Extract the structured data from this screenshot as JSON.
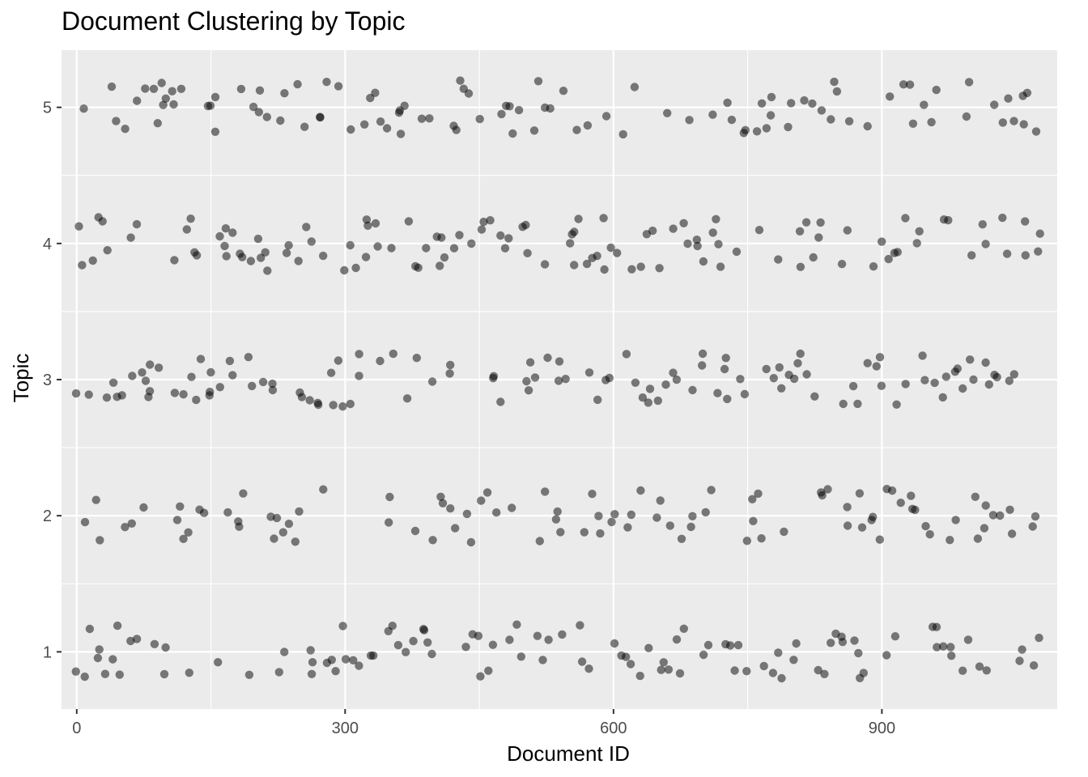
{
  "chart_data": {
    "type": "scatter",
    "title": "Document Clustering by Topic",
    "xlabel": "Document ID",
    "ylabel": "Topic",
    "xlim": [
      -17,
      1096
    ],
    "ylim": [
      0.58,
      5.42
    ],
    "x_ticks": [
      0,
      300,
      600,
      900
    ],
    "y_ticks": [
      1,
      2,
      3,
      4,
      5
    ],
    "x_tick_labels": [
      "0",
      "300",
      "600",
      "900"
    ],
    "y_tick_labels": [
      "1",
      "2",
      "3",
      "4",
      "5"
    ],
    "grid": true,
    "panel_background": "#ebebeb",
    "grid_color": "#ffffff",
    "point_color": "#000000",
    "point_alpha": 0.5,
    "jitter": 0.2,
    "n_documents": 1080,
    "topics": [
      1,
      2,
      3,
      4,
      5
    ]
  }
}
